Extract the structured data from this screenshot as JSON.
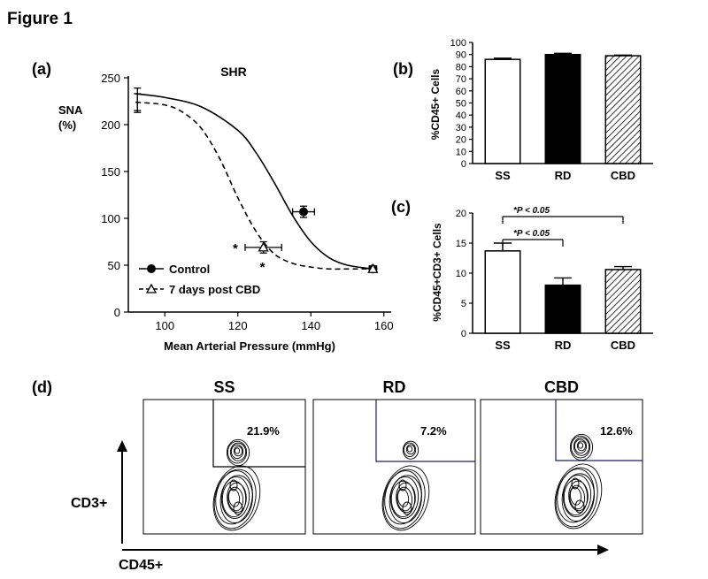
{
  "figure_title": "Figure 1",
  "panel_labels": {
    "a": "(a)",
    "b": "(b)",
    "c": "(c)",
    "d": "(d)"
  },
  "colors": {
    "ink": "#000000",
    "bar_white": "#ffffff",
    "bar_black": "#000000",
    "flow_line": "#1a1a7a"
  },
  "chart_data": [
    {
      "id": "a",
      "type": "line",
      "title": "SHR",
      "xlabel": "Mean Arterial Pressure (mmHg)",
      "ylabel_lines": [
        "SNA",
        "(%)"
      ],
      "xlim": [
        90,
        162
      ],
      "ylim": [
        0,
        250
      ],
      "xticks": [
        100,
        120,
        140,
        160
      ],
      "yticks": [
        0,
        50,
        100,
        150,
        200,
        250
      ],
      "legend_position": "bottom-left",
      "significance_marks": [
        "*",
        "*"
      ],
      "series": [
        {
          "name": "Control",
          "style": "solid",
          "marker": "filled-circle",
          "curve": {
            "x": [
              92,
              100,
              110,
              120,
              125,
              130,
              135,
              140,
              145,
              150,
              157
            ],
            "y": [
              233,
              229,
              219,
              194,
              170,
              138,
              103,
              75,
              58,
              50,
              46
            ]
          },
          "points": [
            {
              "x": 92.5,
              "y": 226,
              "yerr": 13,
              "marker": false
            },
            {
              "x": 138,
              "y": 107,
              "xerr": 3,
              "yerr": 6
            },
            {
              "x": 157,
              "y": 46,
              "xerr": 1,
              "yerr": 3
            }
          ]
        },
        {
          "name": "7 days post CBD",
          "style": "dashed",
          "marker": "open-triangle",
          "curve": {
            "x": [
              92,
              100,
              105,
              110,
              115,
              120,
              125,
              130,
              135,
              140,
              145,
              150,
              157
            ],
            "y": [
              224,
              221,
              213,
              196,
              164,
              122,
              86,
              62,
              52,
              48,
              46,
              46,
              46
            ]
          },
          "points": [
            {
              "x": 92.5,
              "y": 224,
              "yerr": 9,
              "marker": false
            },
            {
              "x": 127,
              "y": 69,
              "xerr": 5,
              "yerr": 6
            },
            {
              "x": 157,
              "y": 46,
              "xerr": 1,
              "yerr": 3
            }
          ]
        }
      ]
    },
    {
      "id": "b",
      "type": "bar",
      "ylabel": "%CD45+ Cells",
      "ylim": [
        0,
        100
      ],
      "yticks": [
        0,
        10,
        20,
        30,
        40,
        50,
        60,
        70,
        80,
        90,
        100
      ],
      "categories": [
        "SS",
        "RD",
        "CBD"
      ],
      "values": [
        86,
        90,
        89
      ],
      "errors": [
        1,
        1,
        0.5
      ],
      "fills": [
        "white",
        "black",
        "hatched"
      ]
    },
    {
      "id": "c",
      "type": "bar",
      "ylabel": "%CD45+CD3+ Cells",
      "ylim": [
        0,
        20
      ],
      "yticks": [
        0,
        5,
        10,
        15,
        20
      ],
      "categories": [
        "SS",
        "RD",
        "CBD"
      ],
      "values": [
        13.7,
        8.0,
        10.6
      ],
      "errors": [
        1.3,
        1.2,
        0.5
      ],
      "fills": [
        "white",
        "black",
        "hatched"
      ],
      "significance": [
        {
          "from": "SS",
          "to": "RD",
          "label": "*P < 0.05"
        },
        {
          "from": "SS",
          "to": "CBD",
          "label": "*P < 0.05"
        }
      ]
    }
  ],
  "flow": {
    "x_axis_label": "CD45+",
    "y_axis_label": "CD3+",
    "panels": [
      {
        "title": "SS",
        "gate_percent": "21.9%"
      },
      {
        "title": "RD",
        "gate_percent": "7.2%"
      },
      {
        "title": "CBD",
        "gate_percent": "12.6%"
      }
    ]
  }
}
